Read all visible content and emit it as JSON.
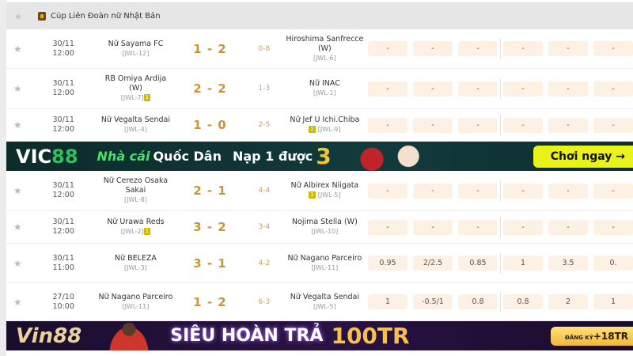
{
  "league": {
    "name": "Cúp Liên Đoàn nữ Nhật Bản"
  },
  "matches": [
    {
      "date": "30/11",
      "time": "12:00",
      "home": "Nữ Sayama FC",
      "home_code": "[JWL-12]",
      "home_card": "",
      "score": "1-2",
      "ht": "0-8",
      "away": "Hiroshima Sanfrecce (W)",
      "away_code": "[JWL-6]",
      "away_card": "",
      "odds": [
        "-",
        "-",
        "-",
        "-",
        "-",
        "-"
      ]
    },
    {
      "date": "30/11",
      "time": "12:00",
      "home": "RB Omiya Ardija (W)",
      "home_code": "[JWL-7]",
      "home_card": "1",
      "score": "2-2",
      "ht": "1-3",
      "away": "Nữ INAC",
      "away_code": "[JWL-1]",
      "away_card": "",
      "odds": [
        "-",
        "-",
        "-",
        "-",
        "-",
        "-"
      ]
    },
    {
      "date": "30/11",
      "time": "12:00",
      "home": "Nữ Vegalta Sendai",
      "home_code": "[JWL-4]",
      "home_card": "",
      "score": "1-0",
      "ht": "2-5",
      "away": "Nữ Jef U Ichi.Chiba",
      "away_code": "[JWL-9]",
      "away_card": "1",
      "odds": [
        "-",
        "-",
        "-",
        "-",
        "-",
        "-"
      ]
    },
    {
      "date": "30/11",
      "time": "12:00",
      "home": "Nữ Cerezo Osaka Sakai",
      "home_code": "[JWL-8]",
      "home_card": "",
      "score": "2-1",
      "ht": "4-4",
      "away": "Nữ Albirex Niigata",
      "away_code": "[JWL-5]",
      "away_card": "1",
      "odds": [
        "-",
        "-",
        "-",
        "-",
        "-",
        "-"
      ]
    },
    {
      "date": "30/11",
      "time": "12:00",
      "home": "Nữ Urawa Reds",
      "home_code": "[JWL-2]",
      "home_card": "1",
      "score": "3-2",
      "ht": "3-4",
      "away": "Nojima Stella (W)",
      "away_code": "[JWL-10]",
      "away_card": "",
      "odds": [
        "-",
        "-",
        "-",
        "-",
        "-",
        "-"
      ]
    },
    {
      "date": "30/11",
      "time": "11:00",
      "home": "Nữ BELEZA",
      "home_code": "[JWL-3]",
      "home_card": "",
      "score": "3-1",
      "ht": "4-2",
      "away": "Nữ Nagano Parceiro",
      "away_code": "[JWL-11]",
      "away_card": "",
      "odds": [
        "0.95",
        "2/2.5",
        "0.85",
        "1",
        "3.5",
        "0."
      ]
    },
    {
      "date": "27/10",
      "time": "10:00",
      "home": "Nữ Nagano Parceiro",
      "home_code": "[JWL-11]",
      "home_card": "",
      "score": "1-2",
      "ht": "6-3",
      "away": "Nữ Vegalta Sendai",
      "away_code": "[JWL-5]",
      "away_card": "",
      "odds": [
        "1",
        "-0.5/1",
        "0.8",
        "0.8",
        "2",
        "1"
      ]
    }
  ],
  "banner_vic88": {
    "logo": "VIC88",
    "slogan_a": "Nhà cái",
    "slogan_b": "Quốc Dân",
    "promo": "Nạp 1 được",
    "promo_number": "3",
    "cta": "Chơi ngay →"
  },
  "banner_vin88": {
    "logo": "Vin88",
    "headline": "SIÊU HOÀN TRẢ",
    "amount": "100TR",
    "cta_small": "ĐĂNG KÝ",
    "cta": "+18TR"
  },
  "colors": {
    "score": "#c8953a",
    "odds_bg": "#fcf1e2",
    "card": "#d4b800"
  }
}
